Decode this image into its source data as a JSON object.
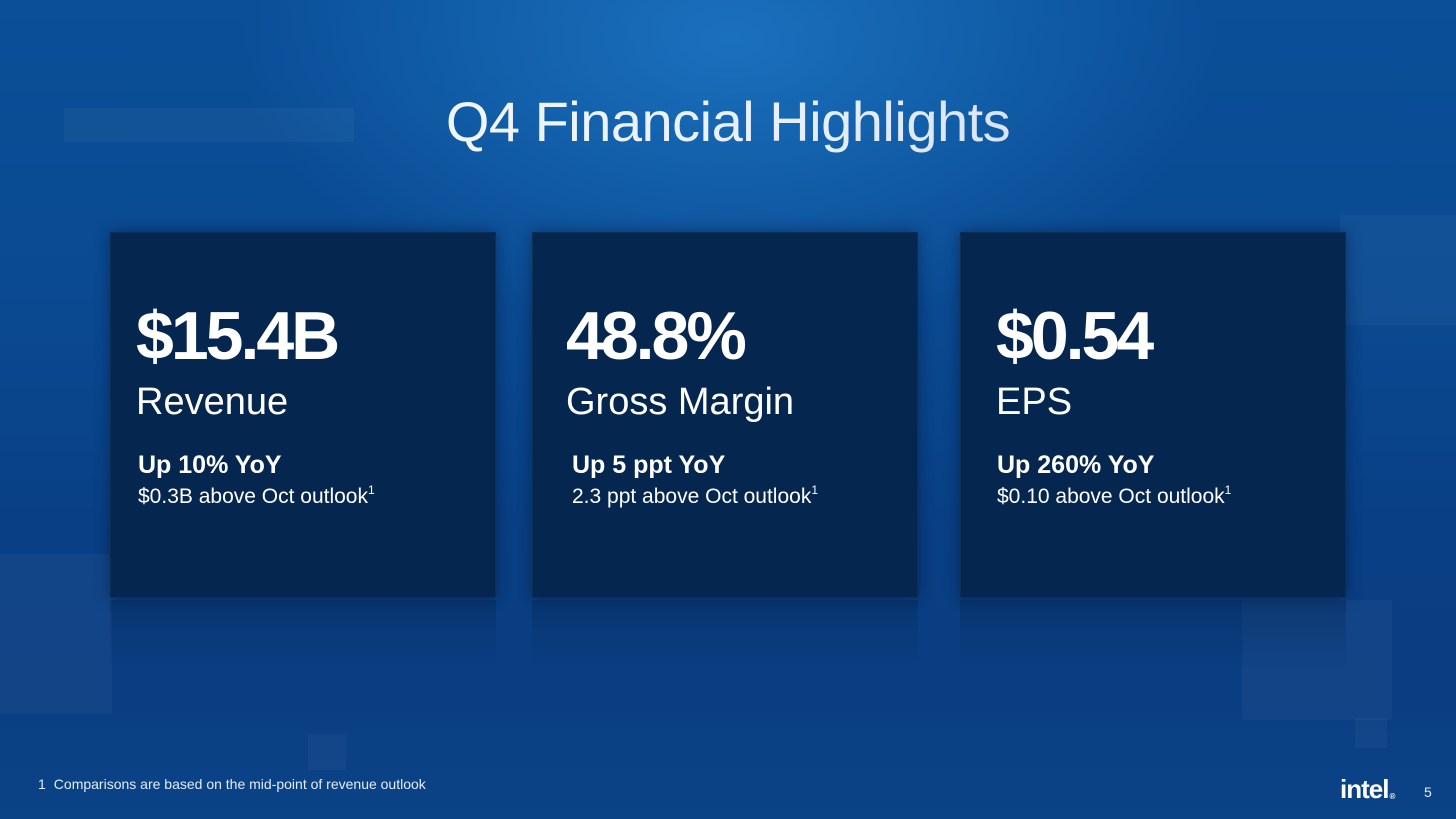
{
  "slide": {
    "title": "Q4 Financial Highlights",
    "highlights": [
      {
        "value": "$15.4B",
        "label": "Revenue",
        "change": "Up 10% YoY",
        "outlook": "$0.3B above Oct outlook",
        "outlook_footnote_ref": "1"
      },
      {
        "value": "48.8%",
        "label": "Gross Margin",
        "change": "Up 5 ppt YoY",
        "outlook": "2.3 ppt above Oct outlook",
        "outlook_footnote_ref": "1"
      },
      {
        "value": "$0.54",
        "label": "EPS",
        "change": "Up 260% YoY",
        "outlook": "$0.10 above Oct outlook",
        "outlook_footnote_ref": "1"
      }
    ],
    "footnote": {
      "number": "1",
      "text": "Comparisons are based on the mid-point of revenue outlook"
    },
    "logo_text": "intel",
    "page_number": "5"
  },
  "colors": {
    "background": "#0a4a92",
    "card": "#04264f",
    "title_gradient_end": "#b8ccf2",
    "text": "#ffffff"
  }
}
